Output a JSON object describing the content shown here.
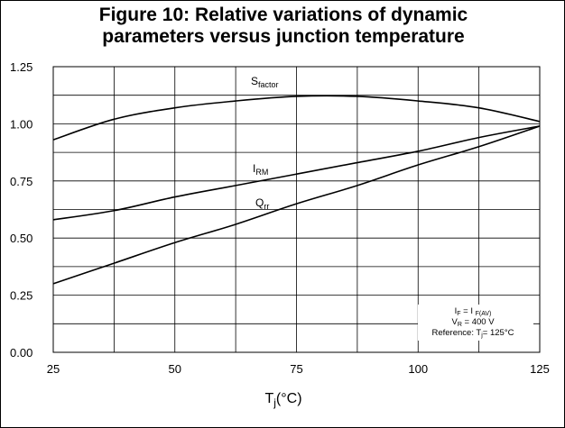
{
  "chart_data": {
    "type": "line",
    "title_lines": [
      "Figure 10: Relative variations of dynamic",
      "parameters versus junction temperature"
    ],
    "xlabel": {
      "base": "T",
      "sub": "j",
      "suffix": "(°C)"
    },
    "ylabel": "",
    "xlim": [
      25,
      125
    ],
    "ylim": [
      0,
      1.25
    ],
    "x_ticks": [
      25,
      50,
      75,
      100,
      125
    ],
    "y_ticks": [
      "0.00",
      "0.25",
      "0.50",
      "0.75",
      "1.00",
      "1.25"
    ],
    "grid": true,
    "grid_x_step": 12.5,
    "grid_y_step": 0.125,
    "x": [
      25,
      37.5,
      50,
      62.5,
      75,
      87.5,
      100,
      112.5,
      125
    ],
    "series": [
      {
        "name": "S_factor",
        "label": {
          "base": "S",
          "sub": "factor"
        },
        "values": [
          0.93,
          1.02,
          1.07,
          1.1,
          1.12,
          1.12,
          1.1,
          1.07,
          1.01
        ]
      },
      {
        "name": "I_RM",
        "label": {
          "base": "I",
          "sub": "RM"
        },
        "values": [
          0.58,
          0.62,
          0.68,
          0.73,
          0.78,
          0.83,
          0.88,
          0.94,
          0.99
        ]
      },
      {
        "name": "Q_rr",
        "label": {
          "base": "Q",
          "sub": "rr"
        },
        "values": [
          0.3,
          0.39,
          0.48,
          0.56,
          0.65,
          0.73,
          0.82,
          0.9,
          0.99
        ]
      }
    ],
    "conditions": [
      {
        "base": "I",
        "sub": "F",
        "mid": " = I ",
        "sub2": "F(AV)",
        "tail": ""
      },
      {
        "base": "V",
        "sub": "R",
        "mid": " = 400 V",
        "sub2": "",
        "tail": ""
      },
      {
        "base": "Reference: T",
        "sub": "j",
        "mid": "= 125°C",
        "sub2": "",
        "tail": ""
      }
    ]
  }
}
